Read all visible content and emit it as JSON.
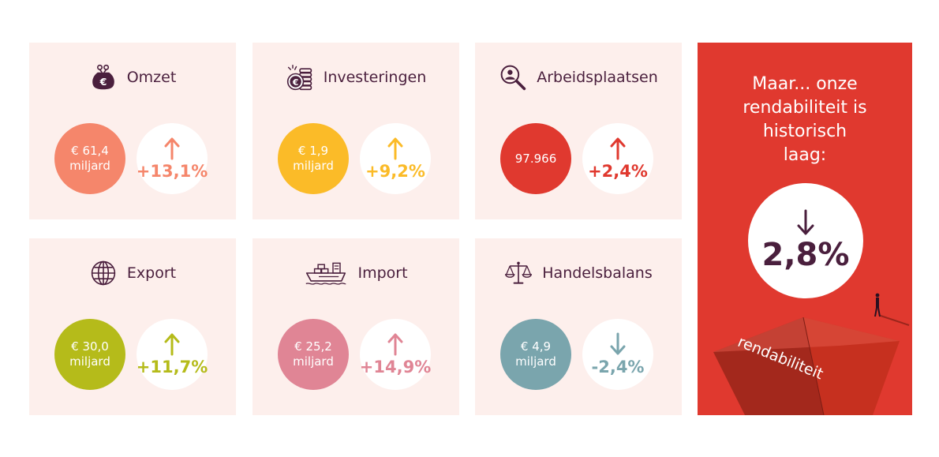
{
  "colors": {
    "card_bg": "#fdefec",
    "title": "#4a1f3d",
    "side_bg": "#e0392f"
  },
  "cards": [
    {
      "title": "Omzet",
      "icon": "money-bag-icon",
      "value_line1": "€ 61,4",
      "value_line2": "miljard",
      "change": "+13,1%",
      "direction": "up",
      "color": "#f5866b"
    },
    {
      "title": "Investeringen",
      "icon": "coins-icon",
      "value_line1": "€ 1,9",
      "value_line2": "miljard",
      "change": "+9,2%",
      "direction": "up",
      "color": "#fbbb28"
    },
    {
      "title": "Arbeidsplaatsen",
      "icon": "person-search-icon",
      "value_line1": "97.966",
      "value_line2": "",
      "change": "+2,4%",
      "direction": "up",
      "color": "#e0392f"
    },
    {
      "title": "Export",
      "icon": "globe-icon",
      "value_line1": "€ 30,0",
      "value_line2": "miljard",
      "change": "+11,7%",
      "direction": "up",
      "color": "#b5bb1a"
    },
    {
      "title": "Import",
      "icon": "cargo-ship-icon",
      "value_line1": "€ 25,2",
      "value_line2": "miljard",
      "change": "+14,9%",
      "direction": "up",
      "color": "#e08595"
    },
    {
      "title": "Handelsbalans",
      "icon": "scale-icon",
      "value_line1": "€ 4,9",
      "value_line2": "miljard",
      "change": "-2,4%",
      "direction": "down",
      "color": "#7aa5ad"
    }
  ],
  "side": {
    "line1": "Maar... onze",
    "line2": "rendabiliteit is",
    "line3": "historisch",
    "line4": "laag:",
    "value": "2,8%",
    "direction": "down",
    "word": "rendabiliteit"
  }
}
